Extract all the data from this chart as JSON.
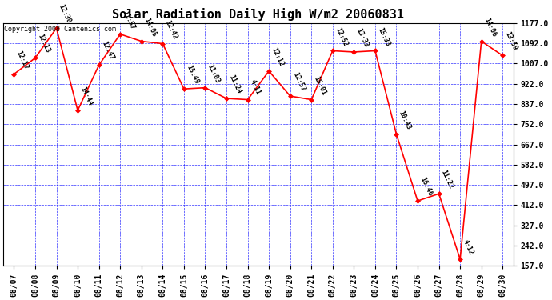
{
  "title": "Solar Radiation Daily High W/m2 20060831",
  "copyright": "Copyright 2008 Cantenics.com",
  "dates": [
    "08/07",
    "08/08",
    "08/09",
    "08/10",
    "08/11",
    "08/12",
    "08/13",
    "08/14",
    "08/15",
    "08/16",
    "08/17",
    "08/18",
    "08/19",
    "08/20",
    "08/21",
    "08/22",
    "08/23",
    "08/24",
    "08/25",
    "08/26",
    "08/27",
    "08/28",
    "08/29",
    "08/30"
  ],
  "values": [
    962,
    1030,
    1155,
    810,
    1000,
    1130,
    1100,
    1090,
    900,
    905,
    860,
    855,
    975,
    870,
    855,
    1060,
    1055,
    1060,
    710,
    430,
    460,
    185,
    1100,
    1040
  ],
  "labels": [
    "12:17",
    "12:13",
    "12:30",
    "14:44",
    "12:47",
    "11:57",
    "14:05",
    "12:42",
    "15:49",
    "11:03",
    "11:24",
    "4:11",
    "12:12",
    "12:57",
    "15:01",
    "12:52",
    "13:33",
    "15:33",
    "10:43",
    "16:46",
    "11:22",
    "4:12",
    "14:06",
    "13:59"
  ],
  "ylim": [
    157.0,
    1177.0
  ],
  "yticks": [
    157.0,
    242.0,
    327.0,
    412.0,
    497.0,
    582.0,
    667.0,
    752.0,
    837.0,
    922.0,
    1007.0,
    1092.0,
    1177.0
  ],
  "line_color": "red",
  "marker_color": "red",
  "bg_color": "white",
  "grid_color": "blue",
  "title_fontsize": 11,
  "label_fontsize": 6,
  "tick_fontsize": 7,
  "copyright_fontsize": 6
}
